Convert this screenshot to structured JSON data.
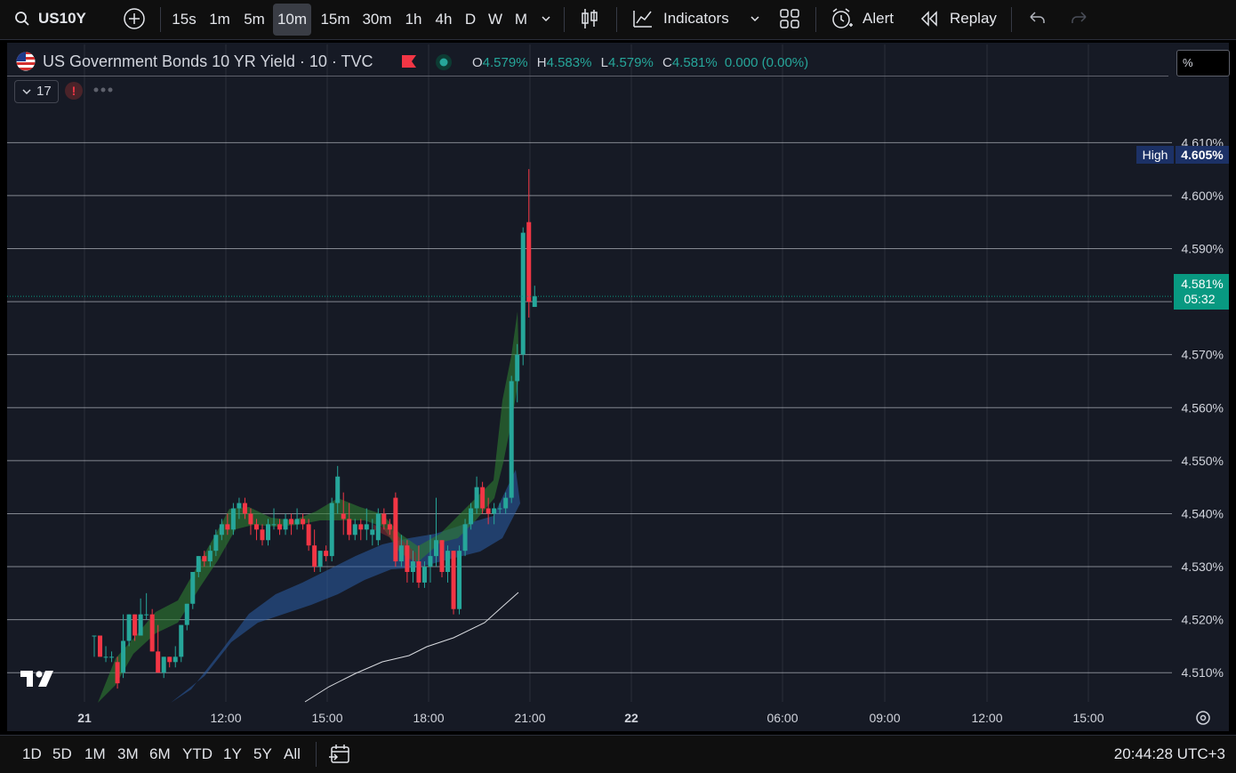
{
  "toolbar": {
    "symbol": "US10Y",
    "timeframes": [
      "15s",
      "1m",
      "5m",
      "10m",
      "15m",
      "30m",
      "1h",
      "4h",
      "D",
      "W",
      "M"
    ],
    "active_timeframe": "10m",
    "indicators_label": "Indicators",
    "alert_label": "Alert",
    "replay_label": "Replay"
  },
  "legend": {
    "title": "US Government Bonds 10 YR Yield · 10 · TVC",
    "o_label": "O",
    "o_value": "4.579%",
    "h_label": "H",
    "h_value": "4.583%",
    "l_label": "L",
    "l_value": "4.579%",
    "c_label": "C",
    "c_value": "4.581%",
    "change": "0.000 (0.00%)",
    "indicator_count": "17",
    "scale_unit": "%"
  },
  "price_labels": {
    "high_label": "High",
    "high_value": "4.605%",
    "last_value": "4.581%",
    "countdown": "05:32"
  },
  "bottom": {
    "ranges": [
      "1D",
      "5D",
      "1M",
      "3M",
      "6M",
      "YTD",
      "1Y",
      "5Y",
      "All"
    ],
    "clock": "20:44:28 UTC+3"
  },
  "colors": {
    "up": "#26a69a",
    "down": "#f23645",
    "background": "#161a25",
    "last_price": "#089981",
    "high_badge": "#1c3166"
  },
  "chart_data": {
    "type": "candlestick",
    "y_unit": "%",
    "ylim": [
      4.5045,
      4.6218
    ],
    "x_tick_labels": [
      "21",
      "12:00",
      "15:00",
      "18:00",
      "21:00",
      "22",
      "06:00",
      "09:00",
      "12:00",
      "15:00"
    ],
    "y_tick_labels": [
      "4.510%",
      "4.520%",
      "4.530%",
      "4.540%",
      "4.550%",
      "4.560%",
      "4.570%",
      "4.580%",
      "4.590%",
      "4.600%",
      "4.610%"
    ],
    "last_price": 4.581,
    "session_high": 4.605,
    "candles": [
      {
        "t": "10:20",
        "o": 4.517,
        "h": 4.517,
        "l": 4.513,
        "c": 4.517
      },
      {
        "t": "10:30",
        "o": 4.517,
        "h": 4.517,
        "l": 4.513,
        "c": 4.513
      },
      {
        "t": "10:40",
        "o": 4.513,
        "h": 4.515,
        "l": 4.512,
        "c": 4.513
      },
      {
        "t": "10:50",
        "o": 4.513,
        "h": 4.514,
        "l": 4.512,
        "c": 4.513
      },
      {
        "t": "11:00",
        "o": 4.512,
        "h": 4.513,
        "l": 4.507,
        "c": 4.508
      },
      {
        "t": "11:10",
        "o": 4.51,
        "h": 4.521,
        "l": 4.509,
        "c": 4.516
      },
      {
        "t": "11:20",
        "o": 4.516,
        "h": 4.521,
        "l": 4.515,
        "c": 4.521
      },
      {
        "t": "11:30",
        "o": 4.521,
        "h": 4.521,
        "l": 4.516,
        "c": 4.517
      },
      {
        "t": "11:40",
        "o": 4.517,
        "h": 4.524,
        "l": 4.517,
        "c": 4.521
      },
      {
        "t": "11:50",
        "o": 4.521,
        "h": 4.525,
        "l": 4.52,
        "c": 4.521
      },
      {
        "t": "12:00",
        "o": 4.521,
        "h": 4.522,
        "l": 4.514,
        "c": 4.514
      },
      {
        "t": "12:10",
        "o": 4.514,
        "h": 4.519,
        "l": 4.51,
        "c": 4.51
      },
      {
        "t": "12:20",
        "o": 4.51,
        "h": 4.513,
        "l": 4.509,
        "c": 4.513
      },
      {
        "t": "12:30",
        "o": 4.513,
        "h": 4.513,
        "l": 4.511,
        "c": 4.512
      },
      {
        "t": "12:40",
        "o": 4.512,
        "h": 4.515,
        "l": 4.511,
        "c": 4.513
      },
      {
        "t": "12:50",
        "o": 4.513,
        "h": 4.519,
        "l": 4.512,
        "c": 4.519
      },
      {
        "t": "13:00",
        "o": 4.519,
        "h": 4.523,
        "l": 4.518,
        "c": 4.523
      },
      {
        "t": "13:10",
        "o": 4.523,
        "h": 4.529,
        "l": 4.522,
        "c": 4.529
      },
      {
        "t": "13:20",
        "o": 4.529,
        "h": 4.532,
        "l": 4.528,
        "c": 4.532
      },
      {
        "t": "13:30",
        "o": 4.532,
        "h": 4.533,
        "l": 4.53,
        "c": 4.531
      },
      {
        "t": "13:40",
        "o": 4.531,
        "h": 4.534,
        "l": 4.53,
        "c": 4.533
      },
      {
        "t": "13:50",
        "o": 4.533,
        "h": 4.537,
        "l": 4.532,
        "c": 4.536
      },
      {
        "t": "14:00",
        "o": 4.536,
        "h": 4.539,
        "l": 4.535,
        "c": 4.538
      },
      {
        "t": "14:10",
        "o": 4.538,
        "h": 4.54,
        "l": 4.536,
        "c": 4.537
      },
      {
        "t": "14:20",
        "o": 4.537,
        "h": 4.542,
        "l": 4.536,
        "c": 4.541
      },
      {
        "t": "14:30",
        "o": 4.541,
        "h": 4.543,
        "l": 4.539,
        "c": 4.542
      },
      {
        "t": "14:40",
        "o": 4.542,
        "h": 4.543,
        "l": 4.539,
        "c": 4.54
      },
      {
        "t": "14:50",
        "o": 4.54,
        "h": 4.541,
        "l": 4.536,
        "c": 4.538
      },
      {
        "t": "15:00",
        "o": 4.538,
        "h": 4.539,
        "l": 4.535,
        "c": 4.537
      },
      {
        "t": "15:10",
        "o": 4.537,
        "h": 4.538,
        "l": 4.534,
        "c": 4.535
      },
      {
        "t": "15:20",
        "o": 4.535,
        "h": 4.539,
        "l": 4.534,
        "c": 4.538
      },
      {
        "t": "15:30",
        "o": 4.538,
        "h": 4.541,
        "l": 4.537,
        "c": 4.538
      },
      {
        "t": "15:40",
        "o": 4.538,
        "h": 4.539,
        "l": 4.536,
        "c": 4.537
      },
      {
        "t": "15:50",
        "o": 4.537,
        "h": 4.54,
        "l": 4.536,
        "c": 4.539
      },
      {
        "t": "16:00",
        "o": 4.539,
        "h": 4.54,
        "l": 4.536,
        "c": 4.538
      },
      {
        "t": "16:10",
        "o": 4.538,
        "h": 4.541,
        "l": 4.537,
        "c": 4.539
      },
      {
        "t": "16:20",
        "o": 4.539,
        "h": 4.54,
        "l": 4.537,
        "c": 4.538
      },
      {
        "t": "16:30",
        "o": 4.538,
        "h": 4.539,
        "l": 4.533,
        "c": 4.534
      },
      {
        "t": "16:40",
        "o": 4.534,
        "h": 4.537,
        "l": 4.529,
        "c": 4.53
      },
      {
        "t": "16:50",
        "o": 4.53,
        "h": 4.533,
        "l": 4.529,
        "c": 4.533
      },
      {
        "t": "17:00",
        "o": 4.533,
        "h": 4.534,
        "l": 4.531,
        "c": 4.532
      },
      {
        "t": "17:10",
        "o": 4.532,
        "h": 4.543,
        "l": 4.531,
        "c": 4.542
      },
      {
        "t": "17:20",
        "o": 4.542,
        "h": 4.549,
        "l": 4.54,
        "c": 4.547
      },
      {
        "t": "17:30",
        "o": 4.54,
        "h": 4.544,
        "l": 4.536,
        "c": 4.539
      },
      {
        "t": "17:40",
        "o": 4.539,
        "h": 4.542,
        "l": 4.535,
        "c": 4.536
      },
      {
        "t": "17:50",
        "o": 4.536,
        "h": 4.539,
        "l": 4.535,
        "c": 4.538
      },
      {
        "t": "18:00",
        "o": 4.538,
        "h": 4.539,
        "l": 4.535,
        "c": 4.537
      },
      {
        "t": "18:10",
        "o": 4.537,
        "h": 4.541,
        "l": 4.535,
        "c": 4.538
      },
      {
        "t": "18:20",
        "o": 4.536,
        "h": 4.539,
        "l": 4.534,
        "c": 4.537
      },
      {
        "t": "18:30",
        "o": 4.535,
        "h": 4.541,
        "l": 4.534,
        "c": 4.54
      },
      {
        "t": "18:40",
        "o": 4.54,
        "h": 4.541,
        "l": 4.537,
        "c": 4.538
      },
      {
        "t": "18:50",
        "o": 4.538,
        "h": 4.539,
        "l": 4.536,
        "c": 4.537
      },
      {
        "t": "19:00",
        "o": 4.543,
        "h": 4.544,
        "l": 4.53,
        "c": 4.531
      },
      {
        "t": "19:10",
        "o": 4.531,
        "h": 4.536,
        "l": 4.53,
        "c": 4.534
      },
      {
        "t": "19:20",
        "o": 4.534,
        "h": 4.535,
        "l": 4.527,
        "c": 4.529
      },
      {
        "t": "19:30",
        "o": 4.529,
        "h": 4.533,
        "l": 4.527,
        "c": 4.531
      },
      {
        "t": "19:40",
        "o": 4.531,
        "h": 4.534,
        "l": 4.526,
        "c": 4.527
      },
      {
        "t": "19:50",
        "o": 4.527,
        "h": 4.531,
        "l": 4.526,
        "c": 4.53
      },
      {
        "t": "20:00",
        "o": 4.53,
        "h": 4.536,
        "l": 4.527,
        "c": 4.532
      },
      {
        "t": "20:10",
        "o": 4.532,
        "h": 4.543,
        "l": 4.53,
        "c": 4.535
      },
      {
        "t": "20:20",
        "o": 4.535,
        "h": 4.535,
        "l": 4.528,
        "c": 4.529
      },
      {
        "t": "20:30",
        "o": 4.529,
        "h": 4.534,
        "l": 4.527,
        "c": 4.533
      },
      {
        "t": "20:40",
        "o": 4.533,
        "h": 4.533,
        "l": 4.521,
        "c": 4.522
      },
      {
        "t": "20:50",
        "o": 4.522,
        "h": 4.534,
        "l": 4.521,
        "c": 4.533
      },
      {
        "t": "21:00",
        "o": 4.533,
        "h": 4.539,
        "l": 4.532,
        "c": 4.538
      },
      {
        "t": "21:10",
        "o": 4.538,
        "h": 4.542,
        "l": 4.537,
        "c": 4.541
      },
      {
        "t": "21:20",
        "o": 4.541,
        "h": 4.547,
        "l": 4.54,
        "c": 4.545
      },
      {
        "t": "21:30",
        "o": 4.545,
        "h": 4.546,
        "l": 4.54,
        "c": 4.541
      },
      {
        "t": "21:40",
        "o": 4.541,
        "h": 4.543,
        "l": 4.538,
        "c": 4.54
      },
      {
        "t": "21:50",
        "o": 4.54,
        "h": 4.542,
        "l": 4.538,
        "c": 4.541
      },
      {
        "t": "22:00",
        "o": 4.541,
        "h": 4.542,
        "l": 4.54,
        "c": 4.541
      },
      {
        "t": "22:10",
        "o": 4.541,
        "h": 4.544,
        "l": 4.54,
        "c": 4.543
      },
      {
        "t": "22:20",
        "o": 4.543,
        "h": 4.566,
        "l": 4.542,
        "c": 4.565
      },
      {
        "t": "22:30",
        "o": 4.565,
        "h": 4.572,
        "l": 4.561,
        "c": 4.57
      },
      {
        "t": "22:40",
        "o": 4.57,
        "h": 4.594,
        "l": 4.568,
        "c": 4.593
      },
      {
        "t": "22:50",
        "o": 4.595,
        "h": 4.605,
        "l": 4.577,
        "c": 4.58
      },
      {
        "t": "23:00",
        "o": 4.579,
        "h": 4.583,
        "l": 4.579,
        "c": 4.581
      }
    ]
  }
}
